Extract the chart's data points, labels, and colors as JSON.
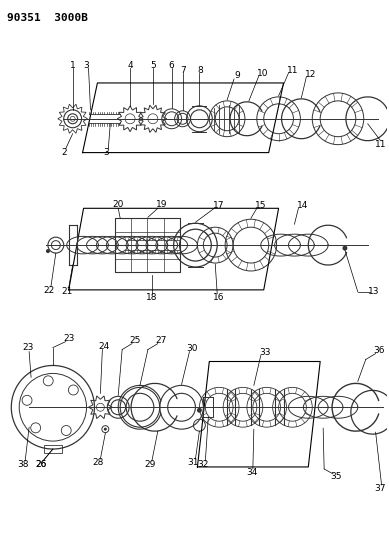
{
  "title": "90351  3000B",
  "bg_color": "#ffffff",
  "line_color": "#000000",
  "part_color": "#333333",
  "title_fontsize": 8,
  "label_fontsize": 6.5,
  "fig_w": 3.89,
  "fig_h": 5.33,
  "dpi": 100
}
